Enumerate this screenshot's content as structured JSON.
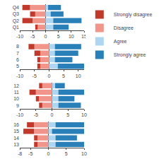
{
  "chart_data": [
    {
      "type": "bar",
      "orientation": "horizontal",
      "stacked": true,
      "grid": false,
      "categories": [
        "Q1",
        "Q2",
        "Q3",
        "Q4"
      ],
      "series": [
        {
          "name": "Strongly disagree",
          "color": "#c0392b",
          "values": [
            -1,
            -4,
            -2,
            -3
          ]
        },
        {
          "name": "Disagree",
          "color": "#f1948a",
          "values": [
            -3,
            -5,
            -4,
            -6
          ]
        },
        {
          "name": "Agree",
          "color": "#aed6f1",
          "values": [
            3,
            3,
            2,
            1
          ]
        },
        {
          "name": "Strongly agree",
          "color": "#2980b9",
          "values": [
            6,
            11,
            5,
            5
          ]
        }
      ],
      "xlim": [
        -10,
        15
      ],
      "xticks": [
        -10,
        -5,
        0,
        5,
        10,
        15
      ]
    },
    {
      "type": "bar",
      "orientation": "horizontal",
      "stacked": true,
      "grid": false,
      "categories": [
        "5",
        "6",
        "7",
        "8"
      ],
      "series": [
        {
          "name": "Strongly disagree",
          "color": "#c0392b",
          "values": [
            -1,
            -1,
            -2,
            -2
          ]
        },
        {
          "name": "Disagree",
          "color": "#f1948a",
          "values": [
            -3,
            -3,
            -3,
            -5
          ]
        },
        {
          "name": "Agree",
          "color": "#aed6f1",
          "values": [
            3,
            2,
            2,
            2
          ]
        },
        {
          "name": "Strongly agree",
          "color": "#2980b9",
          "values": [
            9,
            6,
            8,
            9
          ]
        }
      ],
      "xlim": [
        -10,
        12
      ],
      "xticks": [
        -10,
        -5,
        0,
        5,
        10
      ]
    },
    {
      "type": "bar",
      "orientation": "horizontal",
      "stacked": true,
      "grid": false,
      "categories": [
        "9",
        "10",
        "11",
        "12"
      ],
      "series": [
        {
          "name": "Strongly disagree",
          "color": "#c0392b",
          "values": [
            -1,
            -1,
            -2,
            -1
          ]
        },
        {
          "name": "Disagree",
          "color": "#f1948a",
          "values": [
            -3,
            -4,
            -5,
            -3
          ]
        },
        {
          "name": "Agree",
          "color": "#aed6f1",
          "values": [
            2,
            2,
            2,
            1
          ]
        },
        {
          "name": "Strongly agree",
          "color": "#2980b9",
          "values": [
            7,
            5,
            8,
            3
          ]
        }
      ],
      "xlim": [
        -10,
        10
      ],
      "xticks": [
        -10,
        -5,
        0,
        5,
        10
      ]
    },
    {
      "type": "bar",
      "orientation": "horizontal",
      "stacked": true,
      "grid": false,
      "categories": [
        "13",
        "14",
        "15",
        "16"
      ],
      "series": [
        {
          "name": "Strongly disagree",
          "color": "#c0392b",
          "values": [
            -1,
            -1,
            -3,
            -2
          ]
        },
        {
          "name": "Disagree",
          "color": "#f1948a",
          "values": [
            -3,
            -3,
            -4,
            -4
          ]
        },
        {
          "name": "Agree",
          "color": "#aed6f1",
          "values": [
            2,
            2,
            1,
            2
          ]
        },
        {
          "name": "Strongly agree",
          "color": "#2980b9",
          "values": [
            8,
            6,
            9,
            8
          ]
        }
      ],
      "xlim": [
        -8,
        10
      ],
      "xticks": [
        -8,
        -5,
        0,
        5,
        10
      ]
    }
  ]
}
